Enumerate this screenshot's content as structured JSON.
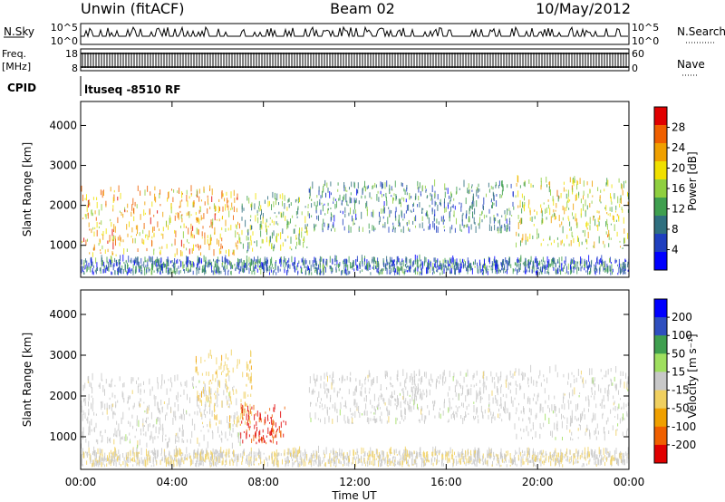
{
  "header": {
    "station": "Unwin (fitACF)",
    "beam": "Beam 02",
    "date": "10/May/2012"
  },
  "noise_panel": {
    "left_label": "N.Sky",
    "right_label": "N.Search",
    "left_ticks": [
      "10^5",
      "10^0"
    ],
    "right_ticks": [
      "10^5",
      "10^0"
    ]
  },
  "freq_panel": {
    "left_label_1": "Freq.",
    "left_label_2": "[MHz]",
    "left_ticks": [
      "18",
      "8"
    ],
    "right_label": "Nave",
    "right_ticks": [
      "60",
      "0"
    ]
  },
  "cpid": {
    "label": "CPID",
    "value": "ltuseq -8510 RF"
  },
  "x_axis": {
    "title": "Time UT",
    "ticks": [
      "00:00",
      "04:00",
      "08:00",
      "12:00",
      "16:00",
      "20:00",
      "00:00"
    ]
  },
  "chart_data": [
    {
      "type": "heatmap",
      "name": "power",
      "xlabel": "Time UT",
      "ylabel": "Slant Range [km]",
      "xlim": [
        0,
        24
      ],
      "ylim": [
        200,
        4600
      ],
      "yticks": [
        1000,
        2000,
        3000,
        4000
      ],
      "colorbar": {
        "label": "Power [dB]",
        "ticks": [
          "28",
          "24",
          "20",
          "16",
          "12",
          "8",
          "4"
        ],
        "range": [
          0,
          32
        ]
      },
      "features": [
        {
          "t0": 0.0,
          "t1": 7.0,
          "r0": 700,
          "r1": 2400,
          "value": 22
        },
        {
          "t0": 7.0,
          "t1": 10.0,
          "r0": 800,
          "r1": 2200,
          "value": 14
        },
        {
          "t0": 10.0,
          "t1": 19.0,
          "r0": 1300,
          "r1": 2500,
          "value": 10
        },
        {
          "t0": 19.0,
          "t1": 24.0,
          "r0": 900,
          "r1": 2600,
          "value": 18
        },
        {
          "t0": 0.0,
          "t1": 24.0,
          "r0": 250,
          "r1": 600,
          "value": 8
        }
      ]
    },
    {
      "type": "heatmap",
      "name": "velocity",
      "xlabel": "Time UT",
      "ylabel": "Slant Range [km]",
      "xlim": [
        0,
        24
      ],
      "ylim": [
        200,
        4600
      ],
      "yticks": [
        1000,
        2000,
        3000,
        4000
      ],
      "colorbar": {
        "label": "Velocity [m s⁻¹]",
        "ticks": [
          "200",
          "100",
          "50",
          "15",
          "-15",
          "-50",
          "-100",
          "-200"
        ],
        "range": [
          -250,
          250
        ]
      },
      "features": [
        {
          "t0": 0.0,
          "t1": 7.0,
          "r0": 700,
          "r1": 2400,
          "value": 0
        },
        {
          "t0": 7.0,
          "t1": 9.0,
          "r0": 800,
          "r1": 1700,
          "value": -200
        },
        {
          "t0": 5.0,
          "t1": 7.5,
          "r0": 1200,
          "r1": 3000,
          "value": -60
        },
        {
          "t0": 10.0,
          "t1": 19.0,
          "r0": 1300,
          "r1": 2500,
          "value": 0
        },
        {
          "t0": 19.0,
          "t1": 24.0,
          "r0": 900,
          "r1": 2600,
          "value": 0
        },
        {
          "t0": 0.0,
          "t1": 24.0,
          "r0": 250,
          "r1": 600,
          "value": -20
        }
      ]
    }
  ]
}
